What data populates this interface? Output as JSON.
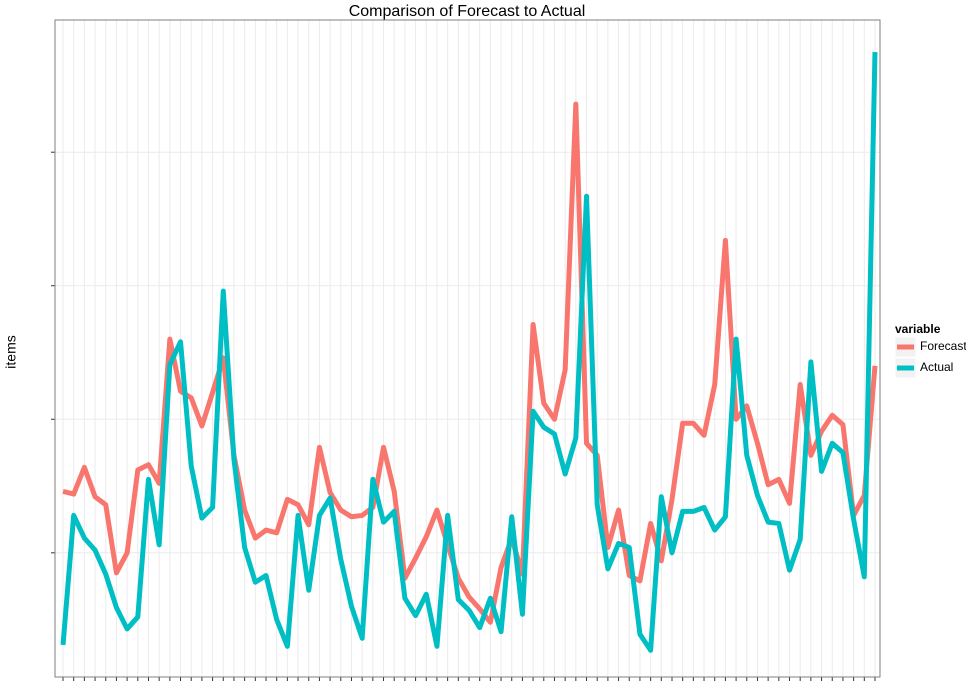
{
  "chart_data": {
    "type": "line",
    "title": "Comparison of Forecast to Actual",
    "ylabel": "items",
    "legend_title": "variable",
    "legend": "right",
    "grid": true,
    "x": [
      1,
      2,
      3,
      4,
      5,
      6,
      7,
      8,
      9,
      10,
      11,
      12,
      13,
      14,
      15,
      16,
      17,
      18,
      19,
      20,
      21,
      22,
      23,
      24,
      25,
      26,
      27,
      28,
      29,
      30,
      31,
      32,
      33,
      34,
      35,
      36,
      37,
      38,
      39,
      40,
      41,
      42,
      43,
      44,
      45,
      46,
      47,
      48,
      49,
      50,
      51,
      52,
      53,
      54,
      55,
      56,
      57,
      58,
      59,
      60,
      61,
      62,
      63,
      64,
      65,
      66,
      67,
      68,
      69,
      70,
      71,
      72,
      73,
      74,
      75,
      76,
      77
    ],
    "xlim": [
      0.25,
      77.47
    ],
    "xticks": [
      1,
      2,
      3,
      4,
      5,
      6,
      7,
      8,
      9,
      10,
      11,
      12,
      13,
      14,
      15,
      16,
      17,
      18,
      19,
      20,
      21,
      22,
      23,
      24,
      25,
      26,
      27,
      28,
      29,
      30,
      31,
      32,
      33,
      34,
      35,
      36,
      37,
      38,
      39,
      40,
      41,
      42,
      43,
      44,
      45,
      46,
      47,
      48,
      49,
      50,
      51,
      52,
      53,
      54,
      55,
      56,
      57,
      58,
      59,
      60,
      61,
      62,
      63,
      64,
      65,
      66,
      67,
      68,
      69,
      70,
      71,
      72,
      73,
      74,
      75,
      76,
      77
    ],
    "ylim": [
      0.07,
      4.99
    ],
    "yticks": [
      1,
      2,
      3,
      4
    ],
    "series": [
      {
        "name": "Forecast",
        "color": "#F8766D",
        "values": [
          1.46,
          1.44,
          1.64,
          1.42,
          1.36,
          0.85,
          1.0,
          1.62,
          1.66,
          1.52,
          2.6,
          2.21,
          2.16,
          1.95,
          2.2,
          2.46,
          1.73,
          1.32,
          1.11,
          1.17,
          1.15,
          1.4,
          1.36,
          1.21,
          1.79,
          1.45,
          1.32,
          1.27,
          1.28,
          1.34,
          1.79,
          1.46,
          0.81,
          0.96,
          1.12,
          1.32,
          1.06,
          0.81,
          0.67,
          0.58,
          0.48,
          0.89,
          1.11,
          0.84,
          2.71,
          2.12,
          2.0,
          2.37,
          4.36,
          1.82,
          1.73,
          1.04,
          1.32,
          0.83,
          0.79,
          1.22,
          0.94,
          1.4,
          1.97,
          1.97,
          1.88,
          2.26,
          3.34,
          2.0,
          2.1,
          1.82,
          1.51,
          1.55,
          1.37,
          2.26,
          1.73,
          1.91,
          2.03,
          1.96,
          1.28,
          1.43,
          2.4
        ]
      },
      {
        "name": "Actual",
        "color": "#00BFC4",
        "values": [
          0.31,
          1.28,
          1.11,
          1.02,
          0.84,
          0.59,
          0.43,
          0.52,
          1.55,
          1.06,
          2.41,
          2.58,
          1.65,
          1.26,
          1.34,
          2.96,
          1.7,
          1.04,
          0.78,
          0.83,
          0.5,
          0.3,
          1.28,
          0.72,
          1.28,
          1.41,
          0.95,
          0.6,
          0.36,
          1.55,
          1.23,
          1.31,
          0.66,
          0.53,
          0.69,
          0.3,
          1.28,
          0.65,
          0.57,
          0.44,
          0.66,
          0.41,
          1.27,
          0.54,
          2.06,
          1.94,
          1.89,
          1.59,
          1.86,
          3.67,
          1.36,
          0.88,
          1.07,
          1.04,
          0.39,
          0.27,
          1.42,
          1.0,
          1.31,
          1.31,
          1.34,
          1.17,
          1.27,
          2.6,
          1.73,
          1.43,
          1.23,
          1.22,
          0.87,
          1.1,
          2.43,
          1.61,
          1.82,
          1.75,
          1.25,
          0.82,
          4.75
        ]
      }
    ]
  }
}
